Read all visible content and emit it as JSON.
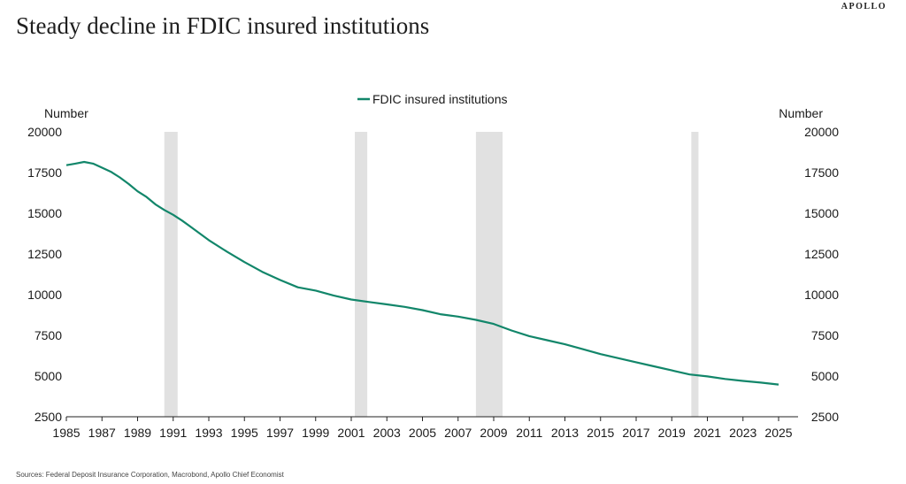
{
  "header": {
    "brand": "APOLLO",
    "title": "Steady decline in FDIC insured institutions"
  },
  "footer": {
    "source": "Sources: Federal Deposit Insurance Corporation, Macrobond, Apollo Chief Economist"
  },
  "colors": {
    "series": "#12866a",
    "recession": "#e1e1e1",
    "axis": "#222222"
  },
  "chart_data": {
    "type": "line",
    "title": "Steady decline in FDIC insured institutions",
    "y_left_label": "Number",
    "y_right_label": "Number",
    "ylim": [
      2500,
      20000
    ],
    "xlim": [
      1985,
      2026
    ],
    "y_ticks": [
      "2500",
      "5000",
      "7500",
      "10000",
      "12500",
      "15000",
      "17500",
      "20000"
    ],
    "x_ticks": [
      "1985",
      "1987",
      "1989",
      "1991",
      "1993",
      "1995",
      "1997",
      "1999",
      "2001",
      "2003",
      "2005",
      "2007",
      "2009",
      "2011",
      "2013",
      "2015",
      "2017",
      "2019",
      "2021",
      "2023",
      "2025"
    ],
    "legend": "top-center",
    "grid": false,
    "recession_periods": [
      [
        1990.5,
        1991.25
      ],
      [
        2001.2,
        2001.9
      ],
      [
        2008.0,
        2009.5
      ],
      [
        2020.1,
        2020.5
      ]
    ],
    "series": [
      {
        "name": "FDIC insured institutions",
        "x": [
          1985,
          1985.5,
          1986,
          1986.5,
          1987,
          1987.5,
          1988,
          1988.5,
          1989,
          1989.5,
          1990,
          1990.5,
          1991,
          1991.5,
          1992,
          1993,
          1994,
          1995,
          1996,
          1997,
          1998,
          1999,
          2000,
          2001,
          2002,
          2003,
          2004,
          2005,
          2006,
          2007,
          2008,
          2009,
          2010,
          2011,
          2012,
          2013,
          2014,
          2015,
          2016,
          2017,
          2018,
          2019,
          2020,
          2021,
          2022,
          2023,
          2024,
          2025
        ],
        "y": [
          17950,
          18050,
          18150,
          18050,
          17800,
          17550,
          17200,
          16800,
          16350,
          16000,
          15550,
          15200,
          14900,
          14550,
          14150,
          13350,
          12650,
          12000,
          11400,
          10900,
          10450,
          10250,
          9950,
          9700,
          9550,
          9400,
          9250,
          9050,
          8800,
          8650,
          8450,
          8200,
          7800,
          7450,
          7200,
          6950,
          6650,
          6350,
          6100,
          5850,
          5600,
          5350,
          5100,
          4980,
          4820,
          4700,
          4600,
          4480
        ]
      }
    ]
  }
}
